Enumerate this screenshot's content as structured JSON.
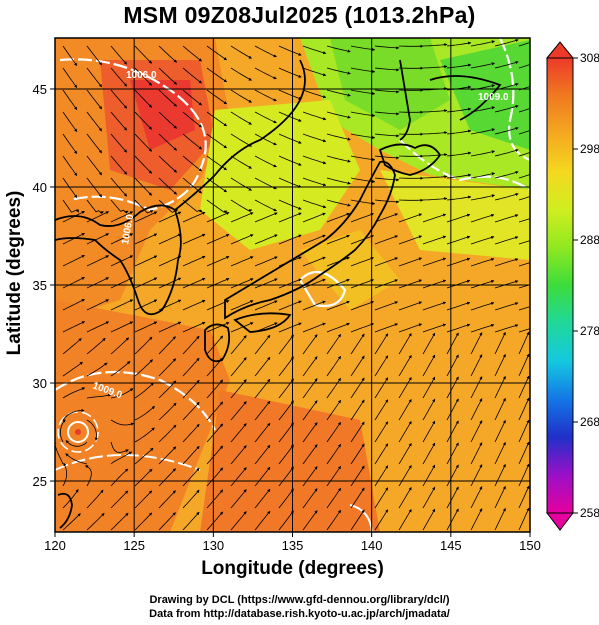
{
  "title": "MSM 09Z08Jul2025 (1013.2hPa)",
  "map": {
    "xlabel": "Longitude (degrees)",
    "ylabel": "Latitude  (degrees)",
    "lon_range": [
      120,
      150
    ],
    "lat_range": [
      22.4,
      47.6
    ],
    "lon_ticks": [
      "120",
      "125",
      "130",
      "135",
      "140",
      "145",
      "150"
    ],
    "lat_ticks": [
      "25",
      "30",
      "35",
      "40",
      "45"
    ],
    "grid": true,
    "contour_labels": [
      "1006.0",
      "1006.0",
      "1009.0",
      "1009.0"
    ]
  },
  "colorbar": {
    "ticks": [
      "308",
      "298",
      "288",
      "278",
      "268",
      "258"
    ],
    "min": 258,
    "max": 308,
    "colors": [
      "#e6009e",
      "#9a10c8",
      "#2030c8",
      "#1476e6",
      "#14c8e0",
      "#20d89a",
      "#3cdc3c",
      "#90e820",
      "#d0ee20",
      "#f5d820",
      "#f5a820",
      "#f07a20",
      "#ec3a2a"
    ]
  },
  "credits": {
    "line1": "Drawing by DCL (https://www.gfd-dennou.org/library/dcl/)",
    "line2": "Data from http://database.rish.kyoto-u.ac.jp/arch/jmadata/"
  }
}
